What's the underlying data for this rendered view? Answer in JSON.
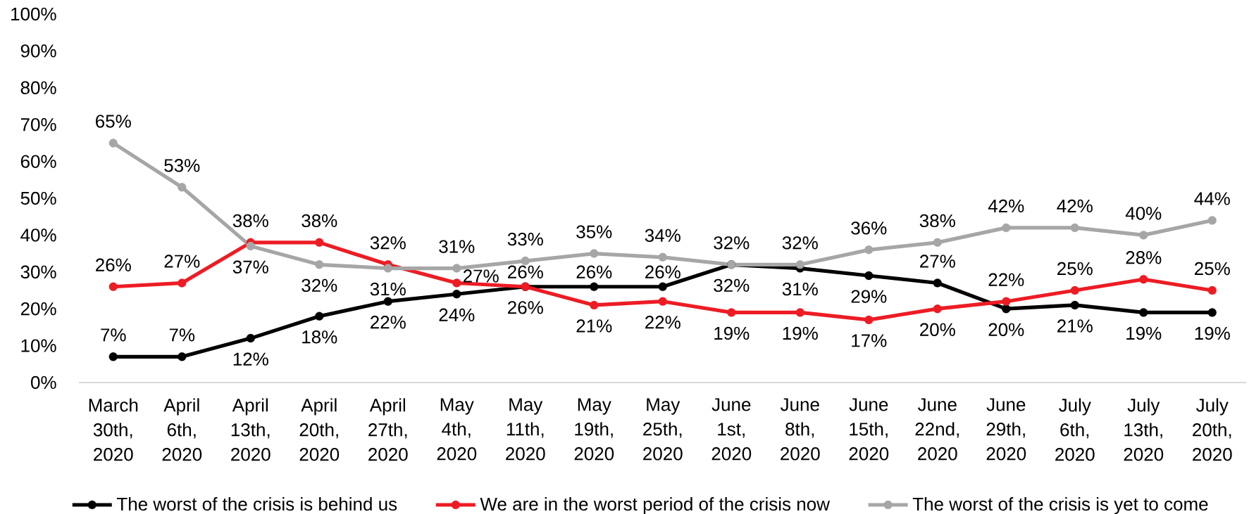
{
  "chart_data": {
    "type": "line",
    "categories": [
      "March 30th, 2020",
      "April 6th, 2020",
      "April 13th, 2020",
      "April 20th, 2020",
      "April 27th, 2020",
      "May 4th, 2020",
      "May 11th, 2020",
      "May 19th, 2020",
      "May 25th, 2020",
      "June 1st, 2020",
      "June 8th, 2020",
      "June 15th, 2020",
      "June 22nd, 2020",
      "June 29th, 2020",
      "July 6th, 2020",
      "July 13th, 2020",
      "July 20th, 2020"
    ],
    "series": [
      {
        "name": "The worst of the crisis is behind us",
        "color": "#000000",
        "values": [
          7,
          7,
          12,
          18,
          22,
          24,
          26,
          26,
          26,
          32,
          31,
          29,
          27,
          20,
          21,
          19,
          19
        ],
        "value_labels": [
          "7%",
          "7%",
          "12%",
          "18%",
          "22%",
          "24%",
          "26%",
          "26%",
          "26%",
          "32%",
          "31%",
          "29%",
          "27%",
          "20%",
          "21%",
          "19%",
          "19%"
        ]
      },
      {
        "name": "We are in the worst period of the crisis now",
        "color": "#ed1c24",
        "values": [
          26,
          27,
          38,
          38,
          32,
          27,
          26,
          21,
          22,
          19,
          19,
          17,
          20,
          22,
          25,
          28,
          25
        ],
        "value_labels": [
          "26%",
          "27%",
          "38%",
          "38%",
          "32%",
          "27%",
          "26%",
          "21%",
          "22%",
          "19%",
          "19%",
          "17%",
          "20%",
          "22%",
          "25%",
          "28%",
          "25%"
        ]
      },
      {
        "name": "The worst of the crisis is yet to come",
        "color": "#a6a6a6",
        "values": [
          65,
          53,
          37,
          32,
          31,
          31,
          33,
          35,
          34,
          32,
          32,
          36,
          38,
          42,
          42,
          40,
          44
        ],
        "value_labels": [
          "65%",
          "53%",
          "37%",
          "32%",
          "31%",
          "31%",
          "33%",
          "35%",
          "34%",
          "32%",
          "32%",
          "36%",
          "38%",
          "42%",
          "42%",
          "40%",
          "44%"
        ]
      }
    ],
    "ylim": [
      0,
      100
    ],
    "yticks": [
      {
        "value": 0,
        "label": "0%"
      },
      {
        "value": 10,
        "label": "10%"
      },
      {
        "value": 20,
        "label": "20%"
      },
      {
        "value": 30,
        "label": "30%"
      },
      {
        "value": 40,
        "label": "40%"
      },
      {
        "value": 50,
        "label": "50%"
      },
      {
        "value": 60,
        "label": "60%"
      },
      {
        "value": 70,
        "label": "70%"
      },
      {
        "value": 80,
        "label": "80%"
      },
      {
        "value": 90,
        "label": "90%"
      },
      {
        "value": 100,
        "label": "100%"
      }
    ],
    "legend": "bottom",
    "marker": "circle"
  }
}
